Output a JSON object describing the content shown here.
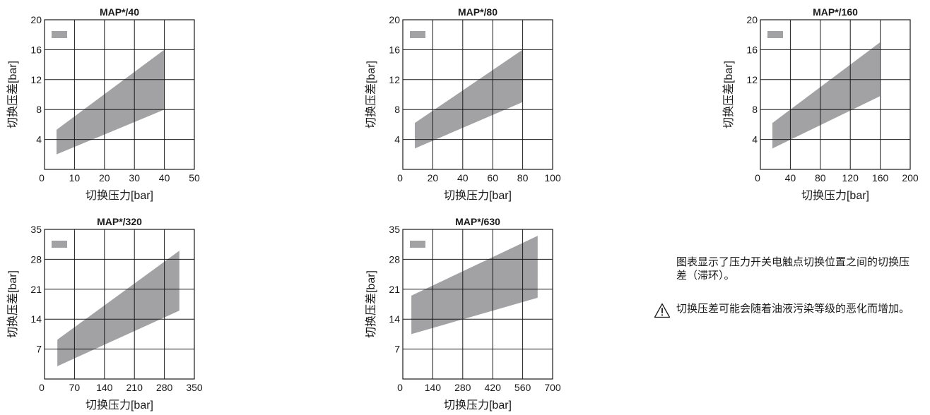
{
  "theme": {
    "band": "#a2a2a4",
    "line": "#1a1a1a",
    "text": "#1a1a1a"
  },
  "chart_data": [
    {
      "type": "area",
      "title": "MAP*/40",
      "xlabel": "切换压力[bar]",
      "ylabel": "切换压差[bar]",
      "xlim": [
        0,
        50
      ],
      "ylim": [
        0,
        20
      ],
      "xticks": [
        10,
        20,
        30,
        40,
        50
      ],
      "yticks": [
        4,
        8,
        12,
        16,
        20
      ],
      "x0_label": "0",
      "grid": true,
      "legend": "top-left",
      "band": {
        "x": [
          4,
          40
        ],
        "upper": [
          5.3,
          16
        ],
        "lower": [
          2,
          8
        ]
      }
    },
    {
      "type": "area",
      "title": "MAP*/80",
      "xlabel": "切换压力[bar]",
      "ylabel": "切换压差[bar]",
      "xlim": [
        0,
        100
      ],
      "ylim": [
        0,
        20
      ],
      "xticks": [
        20,
        40,
        60,
        80,
        100
      ],
      "yticks": [
        4,
        8,
        12,
        16,
        20
      ],
      "x0_label": "0",
      "grid": true,
      "legend": "top-left",
      "band": {
        "x": [
          8,
          80
        ],
        "upper": [
          6.2,
          16
        ],
        "lower": [
          2.8,
          9
        ]
      }
    },
    {
      "type": "area",
      "title": "MAP*/160",
      "xlabel": "切换压力[bar]",
      "ylabel": "切换压差[bar]",
      "xlim": [
        0,
        200
      ],
      "ylim": [
        0,
        20
      ],
      "xticks": [
        40,
        80,
        120,
        160,
        200
      ],
      "yticks": [
        4,
        8,
        12,
        16,
        20
      ],
      "x0_label": "0",
      "grid": true,
      "legend": "top-left",
      "band": {
        "x": [
          16,
          160
        ],
        "upper": [
          6.2,
          17
        ],
        "lower": [
          2.8,
          9.8
        ]
      }
    },
    {
      "type": "area",
      "title": "MAP*/320",
      "xlabel": "切换压力[bar]",
      "ylabel": "切换压差[bar]",
      "xlim": [
        0,
        350
      ],
      "ylim": [
        0,
        35
      ],
      "xticks": [
        70,
        140,
        210,
        280,
        350
      ],
      "yticks": [
        7,
        14,
        21,
        28,
        35
      ],
      "x0_label": "0",
      "grid": true,
      "legend": "top-left",
      "band": {
        "x": [
          30,
          315
        ],
        "upper": [
          9.2,
          30
        ],
        "lower": [
          3,
          16
        ]
      }
    },
    {
      "type": "area",
      "title": "MAP*/630",
      "xlabel": "切换压力[bar]",
      "ylabel": "切换压差[bar]",
      "xlim": [
        0,
        700
      ],
      "ylim": [
        0,
        35
      ],
      "xticks": [
        140,
        280,
        420,
        560,
        700
      ],
      "yticks": [
        7,
        14,
        21,
        28,
        35
      ],
      "x0_label": "0",
      "grid": true,
      "legend": "top-left",
      "band": {
        "x": [
          40,
          630
        ],
        "upper": [
          19.5,
          33.5
        ],
        "lower": [
          10.5,
          19
        ]
      }
    }
  ],
  "notes": {
    "description": "图表显示了压力开关电触点切换位置之间的切换压差（滞环）。",
    "warning": "切换压差可能会随着油液污染等级的恶化而增加。",
    "warning_icon": "warning-triangle-icon"
  }
}
